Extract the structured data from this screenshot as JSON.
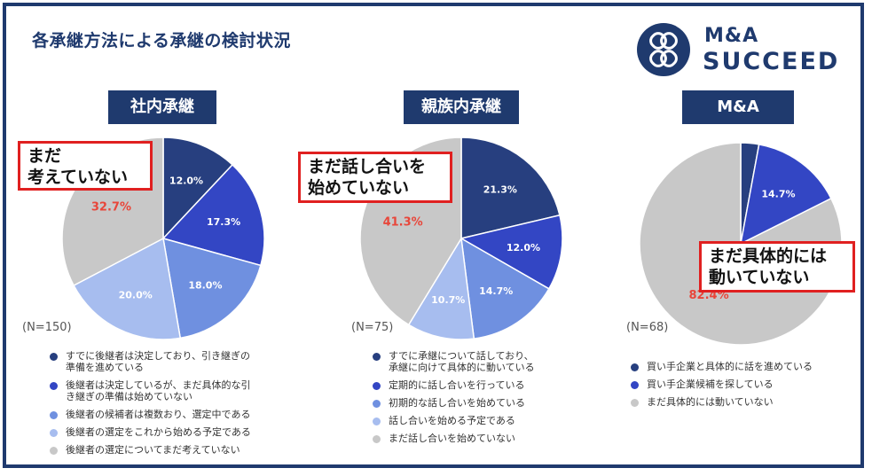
{
  "page": {
    "title": "各承継方法による承継の検討状況",
    "logo_line1": "M&A",
    "logo_line2": "SUCCEED"
  },
  "colors": {
    "navy": "#1f3a6e",
    "series": [
      "#273f7f",
      "#3346c4",
      "#6f90e0",
      "#a7bdef",
      "#c8c8c8"
    ],
    "highlight_text": "#e8463a",
    "callout_border": "#e02020"
  },
  "chart_data": [
    {
      "type": "pie",
      "title": "社内承継",
      "n_label": "(N=150)",
      "categories": [
        "すでに後継者は決定しており、引き継ぎの準備を進めている",
        "後継者は決定しているが、まだ具体的な引き継ぎの準備は始めていない",
        "後継者の候補者は複数おり、選定中である",
        "後継者の選定をこれから始める予定である",
        "後継者の選定についてまだ考えていない"
      ],
      "legend_lines": [
        [
          "すでに後継者は決定しており、引き継ぎの",
          "準備を進めている"
        ],
        [
          "後継者は決定しているが、まだ具体的な引",
          "き継ぎの準備は始めていない"
        ],
        [
          "後継者の候補者は複数おり、選定中である"
        ],
        [
          "後継者の選定をこれから始める予定である"
        ],
        [
          "後継者の選定についてまだ考えていない"
        ]
      ],
      "values": [
        12.0,
        17.3,
        18.0,
        20.0,
        32.7
      ],
      "labels": [
        "12.0%",
        "17.3%",
        "18.0%",
        "20.0%",
        "32.7%"
      ],
      "callout": [
        "まだ",
        "考えていない"
      ]
    },
    {
      "type": "pie",
      "title": "親族内承継",
      "n_label": "(N=75)",
      "categories": [
        "すでに承継について話しており、承継に向けて具体的に動いている",
        "定期的に話し合いを行っている",
        "初期的な話し合いを始めている",
        "話し合いを始める予定である",
        "まだ話し合いを始めていない"
      ],
      "legend_lines": [
        [
          "すでに承継について話しており、",
          "承継に向けて具体的に動いている"
        ],
        [
          "定期的に話し合いを行っている"
        ],
        [
          "初期的な話し合いを始めている"
        ],
        [
          "話し合いを始める予定である"
        ],
        [
          "まだ話し合いを始めていない"
        ]
      ],
      "values": [
        21.3,
        12.0,
        14.7,
        10.7,
        41.3
      ],
      "labels": [
        "21.3%",
        "12.0%",
        "14.7%",
        "10.7%",
        "41.3%"
      ],
      "callout": [
        "まだ話し合いを",
        "始めていない"
      ]
    },
    {
      "type": "pie",
      "title": "M&A",
      "n_label": "(N=68)",
      "categories": [
        "買い手企業と具体的に話を進めている",
        "買い手企業候補を探している",
        "まだ具体的には動いていない"
      ],
      "legend_lines": [
        [
          "買い手企業と具体的に話を進めている"
        ],
        [
          "買い手企業候補を探している"
        ],
        [
          "まだ具体的には動いていない"
        ]
      ],
      "values": [
        2.9,
        14.7,
        82.4
      ],
      "labels": [
        "",
        "14.7%",
        "82.4%"
      ],
      "callout": [
        "まだ具体的には",
        "動いていない"
      ]
    }
  ]
}
